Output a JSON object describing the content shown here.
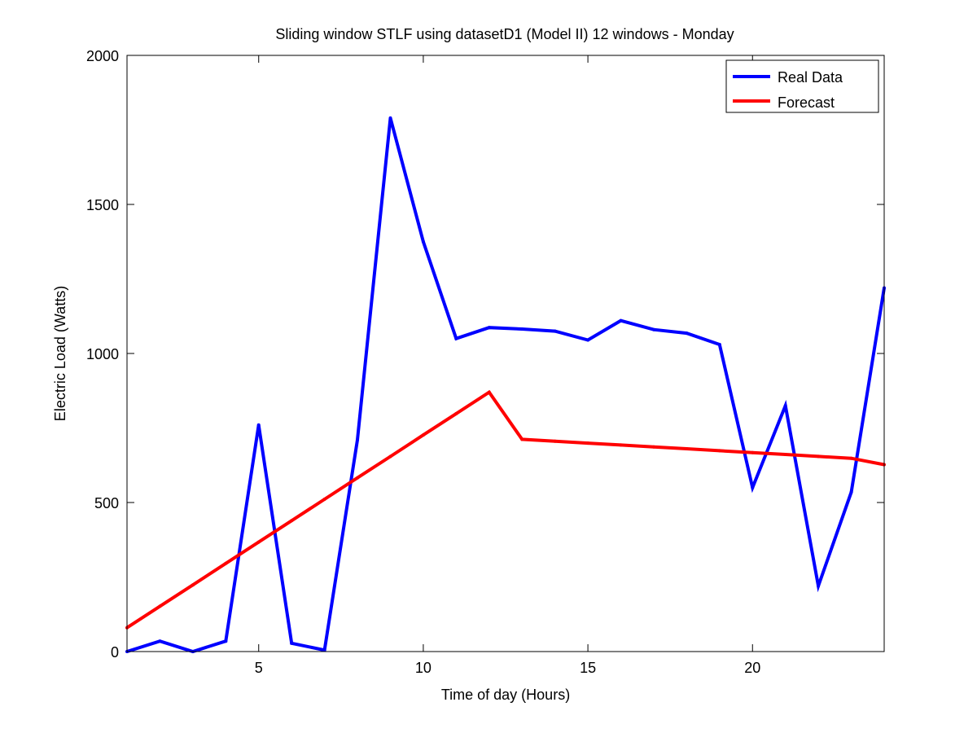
{
  "chart_data": {
    "type": "line",
    "title": "Sliding window STLF using datasetD1 (Model II) 12 windows - Monday",
    "xlabel": "Time of day (Hours)",
    "ylabel": "Electric Load (Watts)",
    "xlim": [
      1,
      24
    ],
    "ylim": [
      0,
      2000
    ],
    "xticks": [
      5,
      10,
      15,
      20
    ],
    "yticks": [
      0,
      500,
      1000,
      1500,
      2000
    ],
    "grid": false,
    "legend_position": "top-right",
    "x": [
      1,
      2,
      3,
      4,
      5,
      6,
      7,
      8,
      9,
      10,
      11,
      12,
      13,
      14,
      15,
      16,
      17,
      18,
      19,
      20,
      21,
      22,
      23,
      24
    ],
    "series": [
      {
        "name": "Real Data",
        "color": "#0000ff",
        "values": [
          0,
          35,
          0,
          35,
          760,
          28,
          5,
          710,
          1790,
          1375,
          1050,
          1087,
          1082,
          1075,
          1045,
          1110,
          1080,
          1068,
          1030,
          550,
          825,
          220,
          535,
          1220
        ]
      },
      {
        "name": "Forecast",
        "color": "#ff0000",
        "values": [
          80,
          151.8,
          223.6,
          295.5,
          367.3,
          439.1,
          510.9,
          582.7,
          654.5,
          726.4,
          798.2,
          870,
          712,
          705.6,
          699.3,
          692.9,
          686.5,
          680.2,
          673.8,
          667.5,
          661.1,
          654.7,
          648.4,
          627
        ]
      }
    ]
  }
}
